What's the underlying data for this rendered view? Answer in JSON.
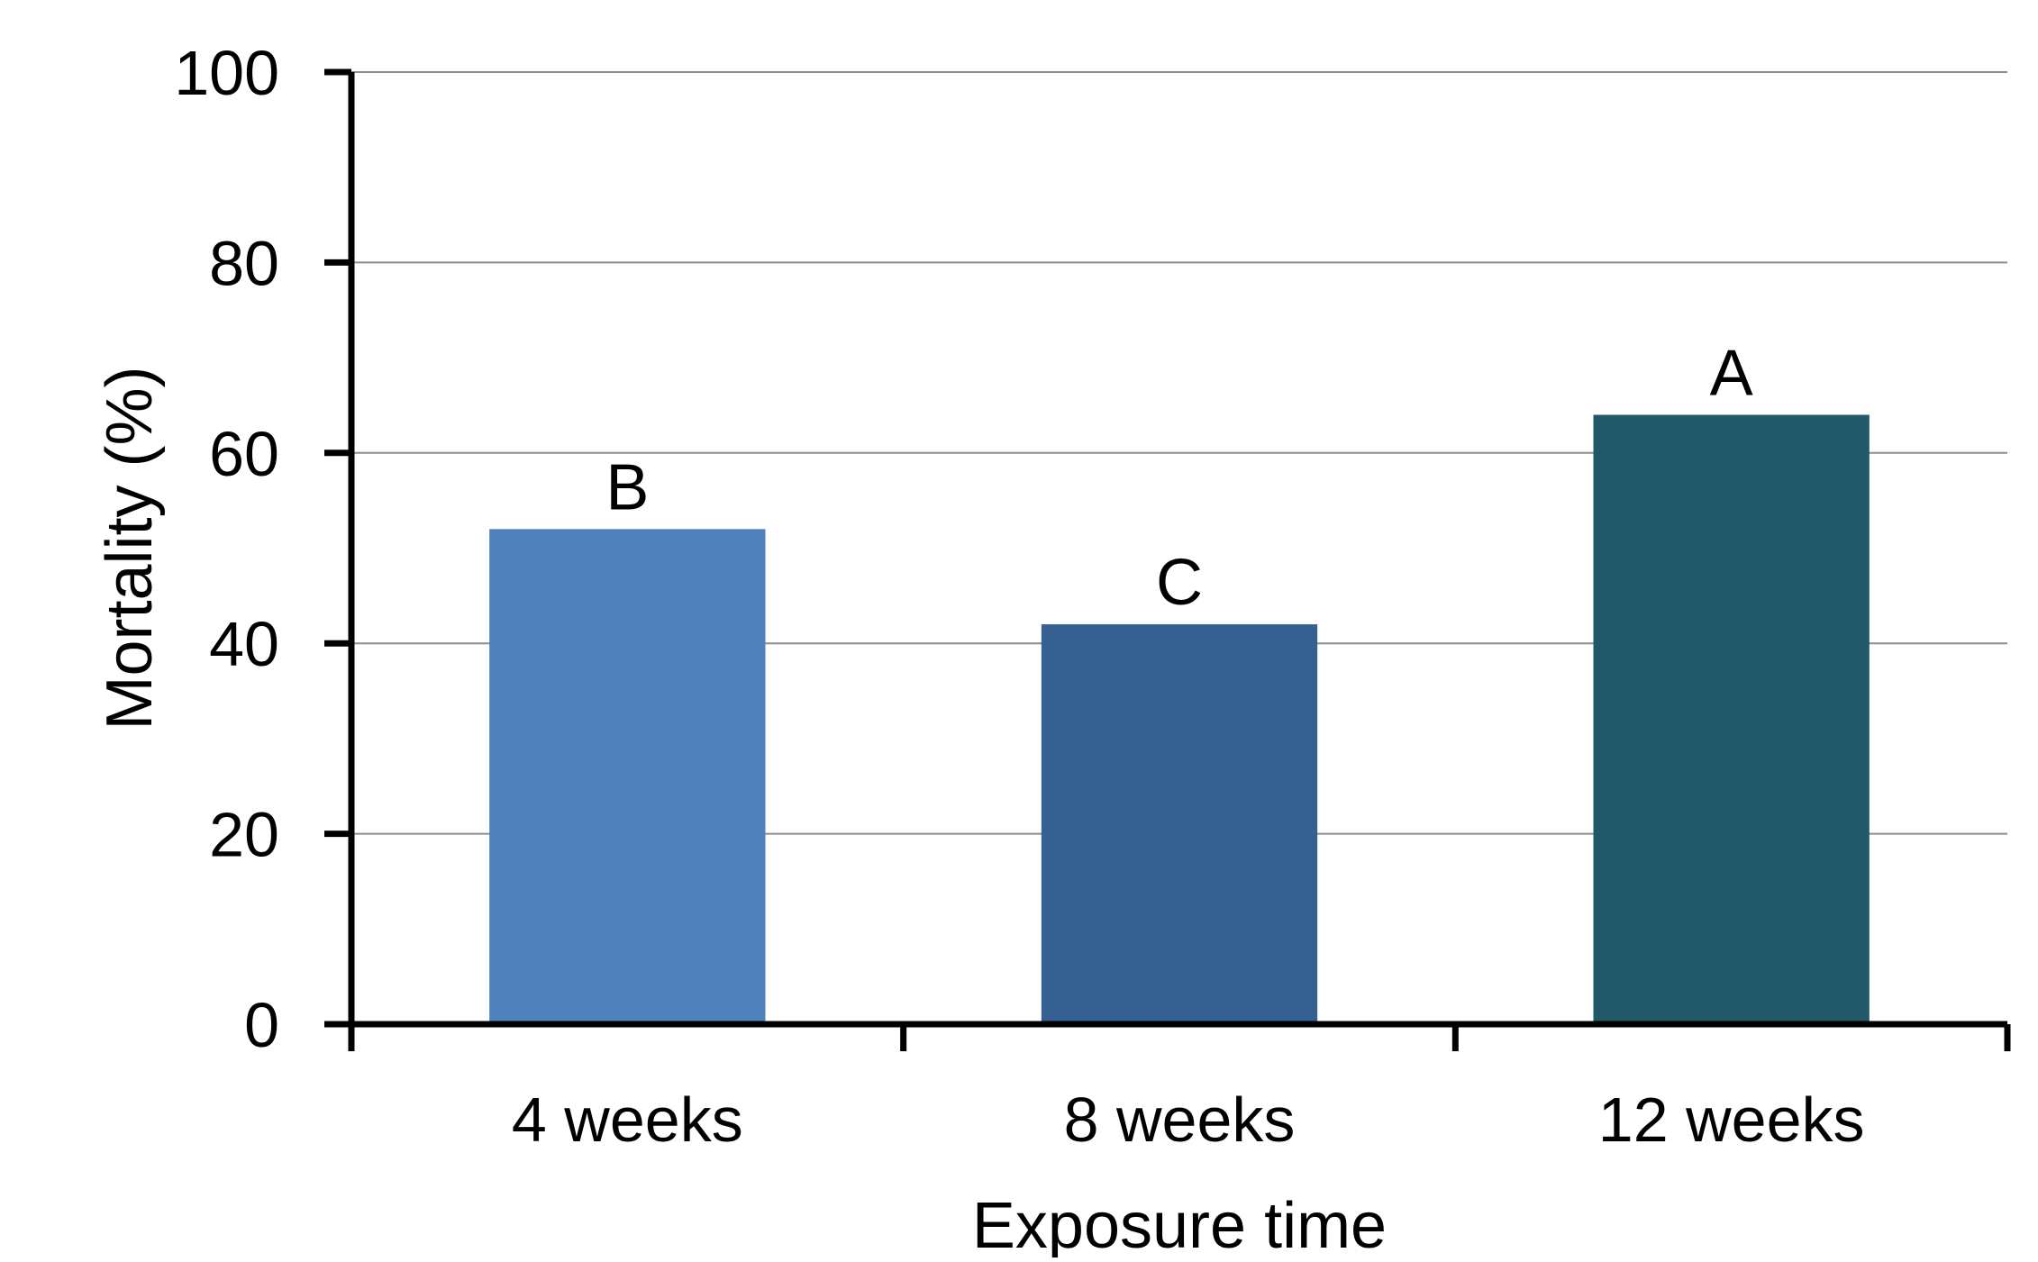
{
  "chart_data": {
    "type": "bar",
    "title": "",
    "xlabel": "Exposure time",
    "ylabel": "Mortality (%)",
    "categories": [
      "4 weeks",
      "8 weeks",
      "12 weeks"
    ],
    "values": [
      52,
      42,
      64
    ],
    "bar_labels": [
      "B",
      "C",
      "A"
    ],
    "bar_colors": [
      "#4f81bd",
      "#376092",
      "#215968"
    ],
    "ylim": [
      0,
      100
    ],
    "yticks": [
      0,
      20,
      40,
      60,
      80,
      100
    ],
    "grid": true,
    "legend": "none"
  }
}
